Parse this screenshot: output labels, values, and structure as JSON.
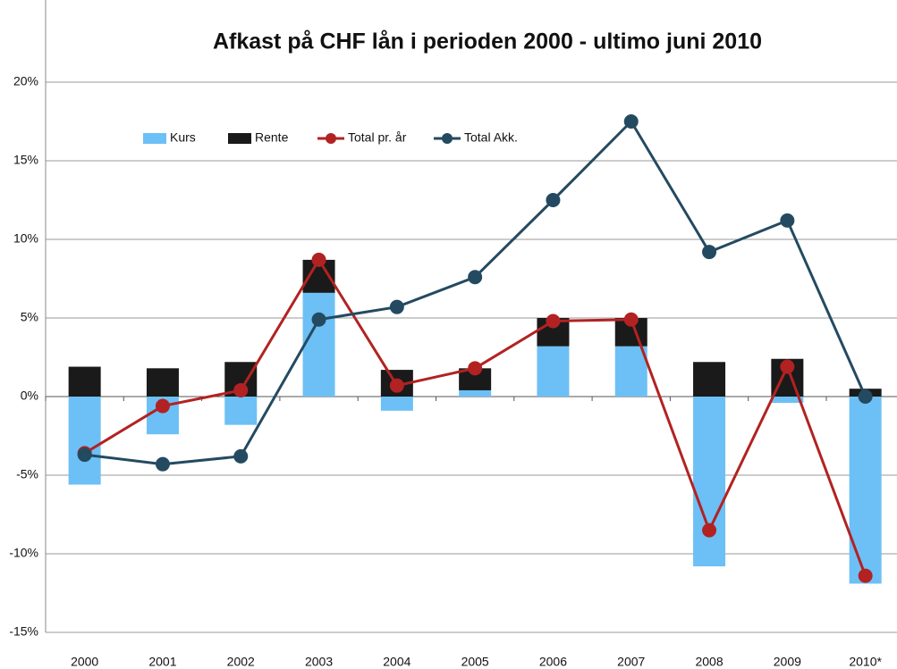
{
  "chart_data": {
    "type": "combo",
    "title": "Afkast på CHF lån i perioden 2000 - ultimo juni 2010",
    "categories": [
      "2000",
      "2001",
      "2002",
      "2003",
      "2004",
      "2005",
      "2006",
      "2007",
      "2008",
      "2009",
      "2010*"
    ],
    "series": [
      {
        "name": "Kurs",
        "type": "bar",
        "color": "#6cc0f5",
        "values": [
          -5.6,
          -2.4,
          -1.8,
          6.6,
          -0.9,
          0.4,
          3.2,
          3.2,
          -10.8,
          -0.4,
          -11.9
        ]
      },
      {
        "name": "Rente",
        "type": "bar",
        "color": "#1a1a1a",
        "values": [
          1.9,
          1.8,
          2.2,
          2.1,
          1.7,
          1.4,
          1.8,
          1.8,
          2.2,
          2.4,
          0.5
        ]
      },
      {
        "name": "Total pr. år",
        "type": "line",
        "color": "#b22222",
        "values": [
          -3.6,
          -0.6,
          0.4,
          8.7,
          0.7,
          1.8,
          4.8,
          4.9,
          -8.5,
          1.9,
          -11.4
        ]
      },
      {
        "name": "Total Akk.",
        "type": "line",
        "color": "#244a61",
        "values": [
          -3.7,
          -4.3,
          -3.8,
          4.9,
          5.7,
          7.6,
          12.5,
          17.5,
          9.2,
          11.2,
          0.0
        ]
      }
    ],
    "ylim": [
      -15,
      20
    ],
    "yticks": [
      {
        "value": -15,
        "label": "-15%"
      },
      {
        "value": -10,
        "label": "-10%"
      },
      {
        "value": -5,
        "label": "-5%"
      },
      {
        "value": 0,
        "label": "0%"
      },
      {
        "value": 5,
        "label": "5%"
      },
      {
        "value": 10,
        "label": "10%"
      },
      {
        "value": 15,
        "label": "15%"
      },
      {
        "value": 20,
        "label": "20%"
      }
    ],
    "grid": true,
    "stacked": true
  }
}
